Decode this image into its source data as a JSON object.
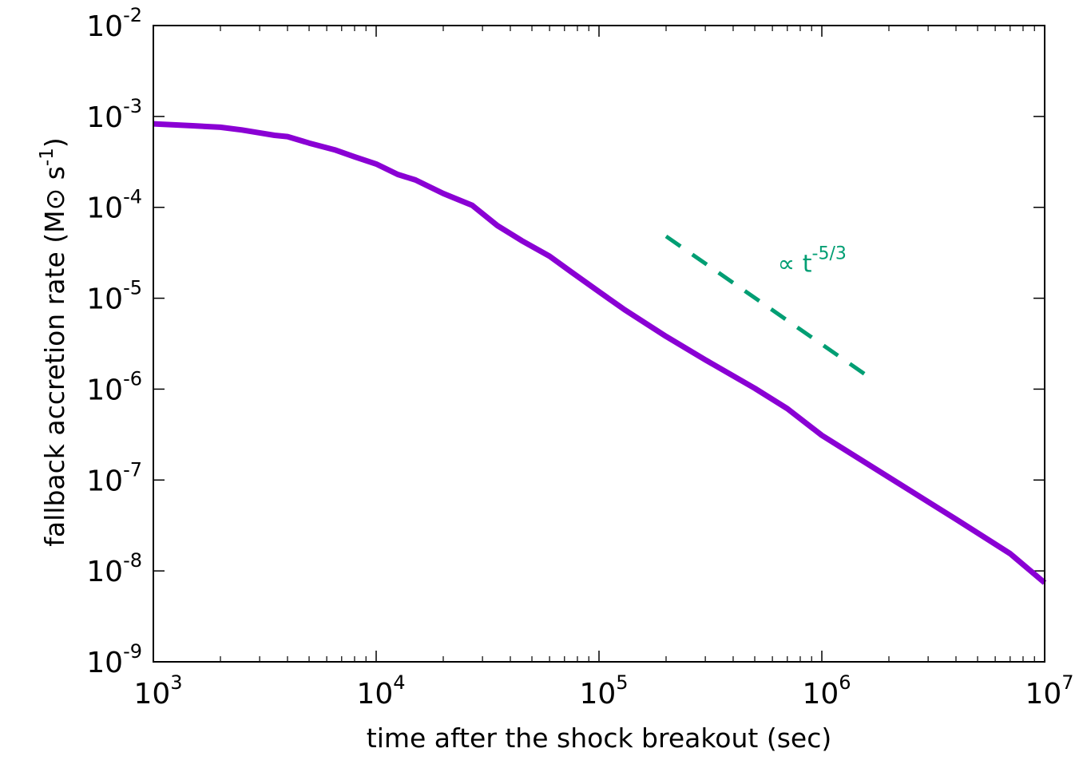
{
  "chart_data": {
    "type": "line",
    "title": "",
    "xlabel": "time after the shock breakout (sec)",
    "ylabel": {
      "prefix": "fallback accretion rate (M",
      "sun_symbol": "⊙",
      "unit": " s",
      "unit_exp": "-1",
      "suffix": ")"
    },
    "xscale": "log",
    "yscale": "log",
    "xlim": [
      1000,
      10000000
    ],
    "ylim": [
      1e-09,
      0.01
    ],
    "xticks": [
      {
        "base": "10",
        "exp": "3"
      },
      {
        "base": "10",
        "exp": "4"
      },
      {
        "base": "10",
        "exp": "5"
      },
      {
        "base": "10",
        "exp": "6"
      },
      {
        "base": "10",
        "exp": "7"
      }
    ],
    "yticks": [
      {
        "base": "10",
        "exp": "-9"
      },
      {
        "base": "10",
        "exp": "-8"
      },
      {
        "base": "10",
        "exp": "-7"
      },
      {
        "base": "10",
        "exp": "-6"
      },
      {
        "base": "10",
        "exp": "-5"
      },
      {
        "base": "10",
        "exp": "-4"
      },
      {
        "base": "10",
        "exp": "-3"
      },
      {
        "base": "10",
        "exp": "-2"
      }
    ],
    "grid": false,
    "series": [
      {
        "name": "fallback accretion rate",
        "color": "#8a00d4",
        "style": "solid",
        "x": [
          1000,
          1500,
          2000,
          2500,
          3000,
          3500,
          4000,
          5000,
          6500,
          8000,
          10000,
          12500,
          15000,
          20000,
          27000,
          35000,
          45000,
          60000,
          75000,
          100000,
          130000,
          200000,
          300000,
          500000,
          700000,
          1000000,
          2000000,
          4000000,
          7000000,
          10000000
        ],
        "y": [
          0.00083,
          0.00079,
          0.00076,
          0.00071,
          0.00066,
          0.00062,
          0.0006,
          0.00051,
          0.00043,
          0.00036,
          0.0003,
          0.00023,
          0.0002,
          0.000142,
          0.000105,
          6.3e-05,
          4.3e-05,
          2.9e-05,
          1.95e-05,
          1.18e-05,
          7.5e-06,
          3.8e-06,
          2.1e-06,
          1.02e-06,
          6.1e-07,
          3.1e-07,
          1.07e-07,
          3.7e-08,
          1.55e-08,
          7.4e-09
        ]
      },
      {
        "name": "t^-5/3 reference",
        "color": "#009e73",
        "style": "dashed",
        "x": [
          200000,
          1600000
        ],
        "y": [
          4.8e-05,
          1.4e-06
        ]
      }
    ],
    "annotations": [
      {
        "text_prefix": "∝ t",
        "text_exp": "-5/3",
        "color": "#009e73",
        "x": 700000,
        "y": 2.2e-05
      }
    ]
  }
}
